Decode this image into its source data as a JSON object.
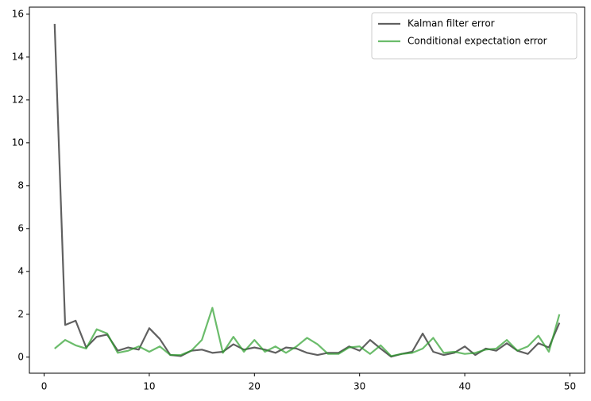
{
  "chart_data": {
    "type": "line",
    "x": [
      1,
      2,
      3,
      4,
      5,
      6,
      7,
      8,
      9,
      10,
      11,
      12,
      13,
      14,
      15,
      16,
      17,
      18,
      19,
      20,
      21,
      22,
      23,
      24,
      25,
      26,
      27,
      28,
      29,
      30,
      31,
      32,
      33,
      34,
      35,
      36,
      37,
      38,
      39,
      40,
      41,
      42,
      43,
      44,
      45,
      46,
      47,
      48,
      49
    ],
    "series": [
      {
        "name": "Kalman filter error",
        "color": "#606060",
        "values": [
          15.55,
          1.5,
          1.7,
          0.45,
          0.95,
          1.05,
          0.3,
          0.45,
          0.35,
          1.35,
          0.85,
          0.1,
          0.05,
          0.3,
          0.35,
          0.2,
          0.25,
          0.6,
          0.35,
          0.45,
          0.35,
          0.2,
          0.45,
          0.4,
          0.2,
          0.1,
          0.2,
          0.2,
          0.5,
          0.3,
          0.8,
          0.4,
          0.02,
          0.15,
          0.25,
          1.1,
          0.25,
          0.1,
          0.2,
          0.5,
          0.1,
          0.4,
          0.3,
          0.65,
          0.3,
          0.15,
          0.65,
          0.45,
          1.6
        ]
      },
      {
        "name": "Conditional expectation error",
        "color": "#2ca02c",
        "values": [
          0.4,
          0.8,
          0.55,
          0.4,
          1.3,
          1.1,
          0.2,
          0.3,
          0.5,
          0.25,
          0.5,
          0.1,
          0.1,
          0.3,
          0.8,
          2.3,
          0.2,
          0.95,
          0.25,
          0.8,
          0.25,
          0.5,
          0.2,
          0.5,
          0.9,
          0.6,
          0.15,
          0.15,
          0.45,
          0.5,
          0.15,
          0.55,
          0.05,
          0.15,
          0.2,
          0.4,
          0.9,
          0.2,
          0.25,
          0.15,
          0.2,
          0.35,
          0.4,
          0.8,
          0.3,
          0.5,
          1.0,
          0.25,
          2.0
        ]
      }
    ],
    "xlim": [
      -1.4,
      51.4
    ],
    "xticks": [
      0,
      10,
      20,
      30,
      40,
      50
    ],
    "ylim": [
      -0.75,
      16.33
    ],
    "yticks": [
      0,
      2,
      4,
      6,
      8,
      10,
      12,
      14,
      16
    ],
    "legend": "upper right"
  }
}
